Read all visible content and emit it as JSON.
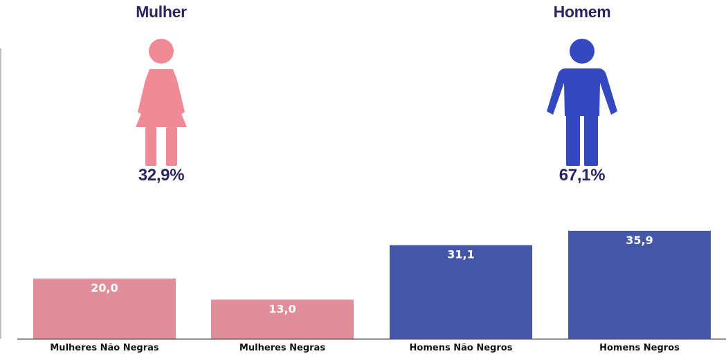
{
  "panels": {
    "female": {
      "title": "Mulher",
      "percent": "32,9%",
      "color": "#f08a97",
      "icon": "woman-icon"
    },
    "male": {
      "title": "Homem",
      "percent": "67,1%",
      "color": "#3448bf",
      "icon": "man-icon"
    }
  },
  "chart_data": {
    "type": "bar",
    "categories": [
      "Mulheres Não Negras",
      "Mulheres Negras",
      "Homens Não Negros",
      "Homens Negros"
    ],
    "values": [
      20.0,
      13.0,
      31.1,
      35.9
    ],
    "value_labels": [
      "20,0",
      "13,0",
      "31,1",
      "35,9"
    ],
    "colors": [
      "#e08f9a",
      "#e08f9a",
      "#4456a8",
      "#4456a8"
    ],
    "ylim": [
      0,
      40
    ],
    "title": "",
    "xlabel": "",
    "ylabel": ""
  }
}
